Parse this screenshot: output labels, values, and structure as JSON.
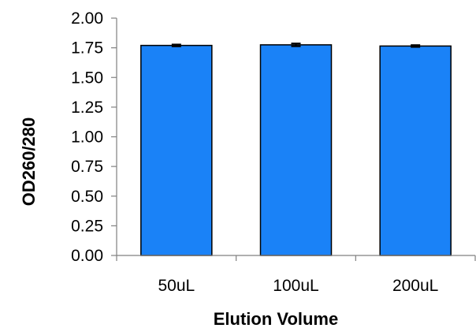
{
  "chart_data": {
    "type": "bar",
    "title": "",
    "xlabel": "Elution Volume",
    "ylabel": "OD260/280",
    "categories": [
      "50uL",
      "100uL",
      "200uL"
    ],
    "series": [
      {
        "values": [
          1.77,
          1.775,
          1.765
        ],
        "errors": [
          0.008,
          0.012,
          0.008
        ],
        "color": "#1a82f7"
      }
    ],
    "ylim": [
      0,
      2.0
    ],
    "yticks": [
      {
        "value": 0.0,
        "label": "0.00"
      },
      {
        "value": 0.25,
        "label": "0.25"
      },
      {
        "value": 0.5,
        "label": "0.50"
      },
      {
        "value": 0.75,
        "label": "0.75"
      },
      {
        "value": 1.0,
        "label": "1.00"
      },
      {
        "value": 1.25,
        "label": "1.25"
      },
      {
        "value": 1.5,
        "label": "1.50"
      },
      {
        "value": 1.75,
        "label": "1.75"
      },
      {
        "value": 2.0,
        "label": "2.00"
      }
    ],
    "grid": false,
    "legend": "none",
    "axis_color": "#808080",
    "bar_edge_color": "#000000"
  }
}
